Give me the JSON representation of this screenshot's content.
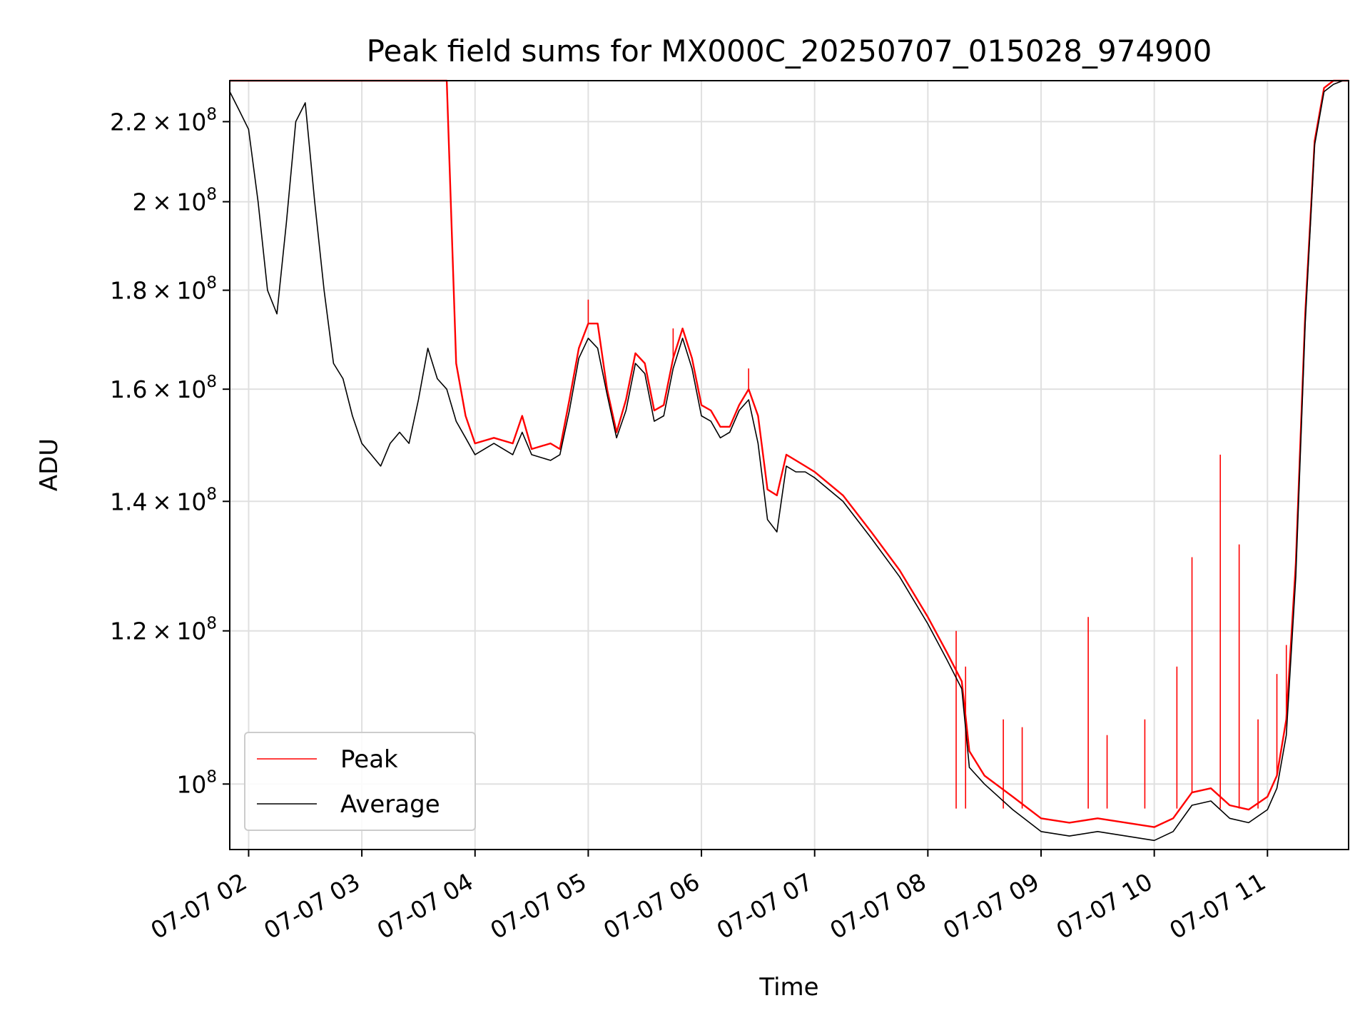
{
  "chart_data": {
    "type": "line",
    "title": "Peak field sums for MX000C_20250707_015028_974900",
    "xlabel": "Time",
    "ylabel": "ADU",
    "y_scale": "log",
    "grid": true,
    "legend_position": "lower-left",
    "x_range": [
      "2025-07-07 01:50",
      "2025-07-07 11:43"
    ],
    "ylim": [
      92500000,
      231000000
    ],
    "x_ticks": [
      "07-07 02",
      "07-07 03",
      "07-07 04",
      "07-07 05",
      "07-07 06",
      "07-07 07",
      "07-07 08",
      "07-07 09",
      "07-07 10",
      "07-07 11"
    ],
    "x_tick_values": [
      "2025-07-07 02:00",
      "2025-07-07 03:00",
      "2025-07-07 04:00",
      "2025-07-07 05:00",
      "2025-07-07 06:00",
      "2025-07-07 07:00",
      "2025-07-07 08:00",
      "2025-07-07 09:00",
      "2025-07-07 10:00",
      "2025-07-07 11:00"
    ],
    "y_ticks": [
      {
        "value": 100000000,
        "mantissa": "",
        "exponent": "8"
      },
      {
        "value": 120000000,
        "mantissa": "1.2",
        "exponent": "8"
      },
      {
        "value": 140000000,
        "mantissa": "1.4",
        "exponent": "8"
      },
      {
        "value": 160000000,
        "mantissa": "1.6",
        "exponent": "8"
      },
      {
        "value": 180000000,
        "mantissa": "1.8",
        "exponent": "8"
      },
      {
        "value": 200000000,
        "mantissa": "2",
        "exponent": "8"
      },
      {
        "value": 220000000,
        "mantissa": "2.2",
        "exponent": "8"
      }
    ],
    "series": [
      {
        "name": "Peak",
        "color": "#ff0000",
        "x": [
          "2025-07-07 01:50",
          "2025-07-07 01:55",
          "2025-07-07 02:00",
          "2025-07-07 02:05",
          "2025-07-07 02:10",
          "2025-07-07 02:15",
          "2025-07-07 02:20",
          "2025-07-07 02:25",
          "2025-07-07 02:30",
          "2025-07-07 02:35",
          "2025-07-07 02:40",
          "2025-07-07 02:45",
          "2025-07-07 02:50",
          "2025-07-07 02:55",
          "2025-07-07 03:00",
          "2025-07-07 03:05",
          "2025-07-07 03:10",
          "2025-07-07 03:15",
          "2025-07-07 03:20",
          "2025-07-07 03:25",
          "2025-07-07 03:30",
          "2025-07-07 03:35",
          "2025-07-07 03:40",
          "2025-07-07 03:45",
          "2025-07-07 03:50",
          "2025-07-07 03:55",
          "2025-07-07 04:00",
          "2025-07-07 04:10",
          "2025-07-07 04:20",
          "2025-07-07 04:25",
          "2025-07-07 04:30",
          "2025-07-07 04:40",
          "2025-07-07 04:45",
          "2025-07-07 04:50",
          "2025-07-07 04:55",
          "2025-07-07 05:00",
          "2025-07-07 05:05",
          "2025-07-07 05:10",
          "2025-07-07 05:15",
          "2025-07-07 05:20",
          "2025-07-07 05:25",
          "2025-07-07 05:30",
          "2025-07-07 05:35",
          "2025-07-07 05:40",
          "2025-07-07 05:45",
          "2025-07-07 05:50",
          "2025-07-07 05:55",
          "2025-07-07 06:00",
          "2025-07-07 06:05",
          "2025-07-07 06:10",
          "2025-07-07 06:15",
          "2025-07-07 06:20",
          "2025-07-07 06:25",
          "2025-07-07 06:30",
          "2025-07-07 06:35",
          "2025-07-07 06:40",
          "2025-07-07 06:45",
          "2025-07-07 06:50",
          "2025-07-07 06:55",
          "2025-07-07 07:00",
          "2025-07-07 07:15",
          "2025-07-07 07:30",
          "2025-07-07 07:45",
          "2025-07-07 08:00",
          "2025-07-07 08:10",
          "2025-07-07 08:18",
          "2025-07-07 08:22",
          "2025-07-07 08:30",
          "2025-07-07 08:45",
          "2025-07-07 09:00",
          "2025-07-07 09:15",
          "2025-07-07 09:30",
          "2025-07-07 09:45",
          "2025-07-07 10:00",
          "2025-07-07 10:10",
          "2025-07-07 10:20",
          "2025-07-07 10:30",
          "2025-07-07 10:40",
          "2025-07-07 10:50",
          "2025-07-07 11:00",
          "2025-07-07 11:05",
          "2025-07-07 11:10",
          "2025-07-07 11:15",
          "2025-07-07 11:20",
          "2025-07-07 11:25",
          "2025-07-07 11:30",
          "2025-07-07 11:35",
          "2025-07-07 11:40",
          "2025-07-07 11:43"
        ],
        "values": [
          231000000,
          231000000,
          231000000,
          231000000,
          231000000,
          231000000,
          231000000,
          231000000,
          231000000,
          231000000,
          231000000,
          231000000,
          231000000,
          231000000,
          231000000,
          231000000,
          231000000,
          231000000,
          231000000,
          231000000,
          231000000,
          231000000,
          231000000,
          231000000,
          165000000,
          155000000,
          150000000,
          151000000,
          150000000,
          155000000,
          149000000,
          150000000,
          149000000,
          158000000,
          168000000,
          173000000,
          173000000,
          160000000,
          152000000,
          158000000,
          167000000,
          165000000,
          156000000,
          157000000,
          166000000,
          172000000,
          166000000,
          157000000,
          156000000,
          153000000,
          153000000,
          157000000,
          160000000,
          155000000,
          142000000,
          141000000,
          148000000,
          147000000,
          146000000,
          145000000,
          141000000,
          135000000,
          129000000,
          122000000,
          117000000,
          113000000,
          104000000,
          101000000,
          98500000,
          96000000,
          95500000,
          96000000,
          95500000,
          95000000,
          96000000,
          99000000,
          99500000,
          97500000,
          97000000,
          98500000,
          101000000,
          108000000,
          130000000,
          175000000,
          215000000,
          229000000,
          231000000,
          231000000,
          231000000
        ],
        "spikes": [
          {
            "x": "2025-07-07 05:00",
            "value": 178000000
          },
          {
            "x": "2025-07-07 05:45",
            "value": 172000000
          },
          {
            "x": "2025-07-07 06:25",
            "value": 164000000
          },
          {
            "x": "2025-07-07 08:15",
            "value": 120000000
          },
          {
            "x": "2025-07-07 08:20",
            "value": 115000000
          },
          {
            "x": "2025-07-07 08:40",
            "value": 108000000
          },
          {
            "x": "2025-07-07 08:50",
            "value": 107000000
          },
          {
            "x": "2025-07-07 09:25",
            "value": 122000000
          },
          {
            "x": "2025-07-07 09:35",
            "value": 106000000
          },
          {
            "x": "2025-07-07 09:55",
            "value": 108000000
          },
          {
            "x": "2025-07-07 10:12",
            "value": 115000000
          },
          {
            "x": "2025-07-07 10:20",
            "value": 131000000
          },
          {
            "x": "2025-07-07 10:35",
            "value": 148000000
          },
          {
            "x": "2025-07-07 10:45",
            "value": 133000000
          },
          {
            "x": "2025-07-07 10:55",
            "value": 108000000
          },
          {
            "x": "2025-07-07 11:05",
            "value": 114000000
          },
          {
            "x": "2025-07-07 11:10",
            "value": 118000000
          }
        ]
      },
      {
        "name": "Average",
        "color": "#000000",
        "x": [
          "2025-07-07 01:50",
          "2025-07-07 01:55",
          "2025-07-07 02:00",
          "2025-07-07 02:05",
          "2025-07-07 02:10",
          "2025-07-07 02:15",
          "2025-07-07 02:20",
          "2025-07-07 02:25",
          "2025-07-07 02:30",
          "2025-07-07 02:35",
          "2025-07-07 02:40",
          "2025-07-07 02:45",
          "2025-07-07 02:50",
          "2025-07-07 02:55",
          "2025-07-07 03:00",
          "2025-07-07 03:05",
          "2025-07-07 03:10",
          "2025-07-07 03:15",
          "2025-07-07 03:20",
          "2025-07-07 03:25",
          "2025-07-07 03:30",
          "2025-07-07 03:35",
          "2025-07-07 03:40",
          "2025-07-07 03:45",
          "2025-07-07 03:50",
          "2025-07-07 03:55",
          "2025-07-07 04:00",
          "2025-07-07 04:10",
          "2025-07-07 04:20",
          "2025-07-07 04:25",
          "2025-07-07 04:30",
          "2025-07-07 04:40",
          "2025-07-07 04:45",
          "2025-07-07 04:50",
          "2025-07-07 04:55",
          "2025-07-07 05:00",
          "2025-07-07 05:05",
          "2025-07-07 05:10",
          "2025-07-07 05:15",
          "2025-07-07 05:20",
          "2025-07-07 05:25",
          "2025-07-07 05:30",
          "2025-07-07 05:35",
          "2025-07-07 05:40",
          "2025-07-07 05:45",
          "2025-07-07 05:50",
          "2025-07-07 05:55",
          "2025-07-07 06:00",
          "2025-07-07 06:05",
          "2025-07-07 06:10",
          "2025-07-07 06:15",
          "2025-07-07 06:20",
          "2025-07-07 06:25",
          "2025-07-07 06:30",
          "2025-07-07 06:35",
          "2025-07-07 06:40",
          "2025-07-07 06:45",
          "2025-07-07 06:50",
          "2025-07-07 06:55",
          "2025-07-07 07:00",
          "2025-07-07 07:15",
          "2025-07-07 07:30",
          "2025-07-07 07:45",
          "2025-07-07 08:00",
          "2025-07-07 08:10",
          "2025-07-07 08:18",
          "2025-07-07 08:22",
          "2025-07-07 08:30",
          "2025-07-07 08:45",
          "2025-07-07 09:00",
          "2025-07-07 09:15",
          "2025-07-07 09:30",
          "2025-07-07 09:45",
          "2025-07-07 10:00",
          "2025-07-07 10:10",
          "2025-07-07 10:20",
          "2025-07-07 10:30",
          "2025-07-07 10:40",
          "2025-07-07 10:50",
          "2025-07-07 11:00",
          "2025-07-07 11:05",
          "2025-07-07 11:10",
          "2025-07-07 11:15",
          "2025-07-07 11:20",
          "2025-07-07 11:25",
          "2025-07-07 11:30",
          "2025-07-07 11:35",
          "2025-07-07 11:40",
          "2025-07-07 11:43"
        ],
        "values": [
          228000000,
          223000000,
          218000000,
          200000000,
          180000000,
          175000000,
          195000000,
          220000000,
          225000000,
          200000000,
          180000000,
          165000000,
          162000000,
          155000000,
          150000000,
          148000000,
          146000000,
          150000000,
          152000000,
          150000000,
          158000000,
          168000000,
          162000000,
          160000000,
          154000000,
          151000000,
          148000000,
          150000000,
          148000000,
          152000000,
          148000000,
          147000000,
          148000000,
          156000000,
          166000000,
          170000000,
          168000000,
          159000000,
          151000000,
          156000000,
          165000000,
          163000000,
          154000000,
          155000000,
          164000000,
          170000000,
          164000000,
          155000000,
          154000000,
          151000000,
          152000000,
          156000000,
          158000000,
          150000000,
          137000000,
          135000000,
          146000000,
          145000000,
          145000000,
          144000000,
          140000000,
          134000000,
          128000000,
          121000000,
          116000000,
          112000000,
          102000000,
          100000000,
          97000000,
          94500000,
          94000000,
          94500000,
          94000000,
          93500000,
          94500000,
          97500000,
          98000000,
          96000000,
          95500000,
          97000000,
          99500000,
          106000000,
          128000000,
          173000000,
          214000000,
          228000000,
          230000000,
          231000000,
          231000000
        ]
      }
    ]
  }
}
